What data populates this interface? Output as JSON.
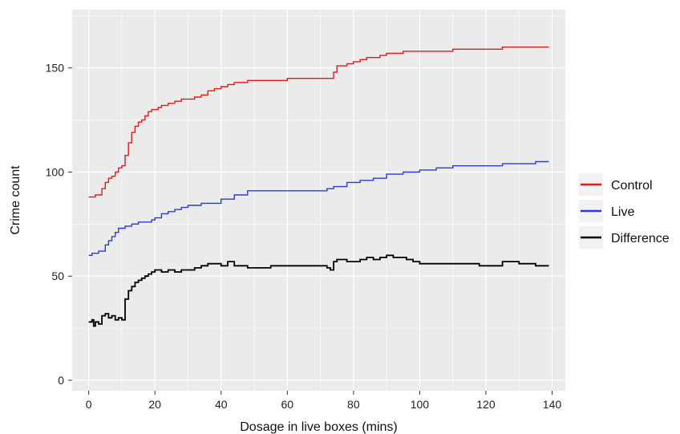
{
  "chart_data": {
    "type": "line",
    "step": true,
    "title": "",
    "xlabel": "Dosage in live boxes (mins)",
    "ylabel": "Crime count",
    "xlim": [
      -5,
      144
    ],
    "ylim": [
      -5,
      178
    ],
    "xticks": [
      0,
      20,
      40,
      60,
      80,
      100,
      120,
      140
    ],
    "yticks": [
      0,
      50,
      100,
      150
    ],
    "grid": true,
    "panel_background": "#EBEBEB",
    "legend_position": "right",
    "series": [
      {
        "name": "Control",
        "color": "#E41A1C",
        "points": [
          [
            0,
            88
          ],
          [
            1,
            88
          ],
          [
            2,
            89
          ],
          [
            3,
            89
          ],
          [
            4,
            92
          ],
          [
            5,
            95
          ],
          [
            6,
            97
          ],
          [
            7,
            98
          ],
          [
            8,
            100
          ],
          [
            9,
            102
          ],
          [
            10,
            103
          ],
          [
            11,
            108
          ],
          [
            12,
            114
          ],
          [
            13,
            119
          ],
          [
            14,
            122
          ],
          [
            15,
            124
          ],
          [
            16,
            125
          ],
          [
            17,
            127
          ],
          [
            18,
            129
          ],
          [
            19,
            130
          ],
          [
            20,
            130
          ],
          [
            21,
            131
          ],
          [
            22,
            132
          ],
          [
            24,
            133
          ],
          [
            26,
            134
          ],
          [
            28,
            135
          ],
          [
            30,
            135
          ],
          [
            32,
            136
          ],
          [
            34,
            137
          ],
          [
            36,
            139
          ],
          [
            38,
            140
          ],
          [
            40,
            141
          ],
          [
            42,
            142
          ],
          [
            44,
            143
          ],
          [
            46,
            143
          ],
          [
            48,
            144
          ],
          [
            50,
            144
          ],
          [
            55,
            144
          ],
          [
            60,
            145
          ],
          [
            65,
            145
          ],
          [
            70,
            145
          ],
          [
            73,
            145
          ],
          [
            74,
            148
          ],
          [
            75,
            151
          ],
          [
            78,
            152
          ],
          [
            80,
            153
          ],
          [
            82,
            154
          ],
          [
            84,
            155
          ],
          [
            86,
            155
          ],
          [
            88,
            156
          ],
          [
            90,
            157
          ],
          [
            95,
            158
          ],
          [
            100,
            158
          ],
          [
            110,
            159
          ],
          [
            120,
            159
          ],
          [
            125,
            160
          ],
          [
            139,
            160
          ]
        ]
      },
      {
        "name": "Live",
        "color": "#2C3BD6",
        "points": [
          [
            0,
            60
          ],
          [
            1,
            61
          ],
          [
            2,
            61
          ],
          [
            3,
            62
          ],
          [
            4,
            62
          ],
          [
            5,
            65
          ],
          [
            6,
            67
          ],
          [
            7,
            69
          ],
          [
            8,
            71
          ],
          [
            9,
            73
          ],
          [
            10,
            73
          ],
          [
            11,
            74
          ],
          [
            12,
            74
          ],
          [
            13,
            75
          ],
          [
            15,
            76
          ],
          [
            17,
            76
          ],
          [
            19,
            77
          ],
          [
            20,
            78
          ],
          [
            22,
            80
          ],
          [
            24,
            81
          ],
          [
            26,
            82
          ],
          [
            28,
            83
          ],
          [
            30,
            84
          ],
          [
            34,
            85
          ],
          [
            38,
            85
          ],
          [
            40,
            87
          ],
          [
            44,
            89
          ],
          [
            48,
            91
          ],
          [
            55,
            91
          ],
          [
            60,
            91
          ],
          [
            65,
            91
          ],
          [
            70,
            91
          ],
          [
            72,
            92
          ],
          [
            74,
            93
          ],
          [
            78,
            95
          ],
          [
            82,
            96
          ],
          [
            86,
            97
          ],
          [
            90,
            99
          ],
          [
            95,
            100
          ],
          [
            100,
            101
          ],
          [
            105,
            102
          ],
          [
            110,
            103
          ],
          [
            120,
            103
          ],
          [
            125,
            104
          ],
          [
            130,
            104
          ],
          [
            135,
            105
          ],
          [
            139,
            105
          ]
        ]
      },
      {
        "name": "Difference",
        "color": "#000000",
        "points": [
          [
            0,
            28
          ],
          [
            1,
            29
          ],
          [
            1.5,
            26
          ],
          [
            2,
            28
          ],
          [
            3,
            27
          ],
          [
            4,
            31
          ],
          [
            5,
            32
          ],
          [
            6,
            30
          ],
          [
            7,
            31
          ],
          [
            8,
            29
          ],
          [
            9,
            30
          ],
          [
            10,
            29
          ],
          [
            11,
            39
          ],
          [
            12,
            43
          ],
          [
            13,
            45
          ],
          [
            14,
            47
          ],
          [
            15,
            48
          ],
          [
            16,
            49
          ],
          [
            17,
            50
          ],
          [
            18,
            51
          ],
          [
            19,
            52
          ],
          [
            20,
            53
          ],
          [
            22,
            52
          ],
          [
            24,
            53
          ],
          [
            26,
            52
          ],
          [
            28,
            53
          ],
          [
            30,
            53
          ],
          [
            32,
            54
          ],
          [
            34,
            55
          ],
          [
            36,
            56
          ],
          [
            38,
            56
          ],
          [
            40,
            55
          ],
          [
            42,
            57
          ],
          [
            44,
            55
          ],
          [
            46,
            55
          ],
          [
            48,
            54
          ],
          [
            50,
            54
          ],
          [
            55,
            55
          ],
          [
            60,
            55
          ],
          [
            65,
            55
          ],
          [
            70,
            55
          ],
          [
            72,
            54
          ],
          [
            73,
            53
          ],
          [
            74,
            57
          ],
          [
            75,
            58
          ],
          [
            78,
            57
          ],
          [
            80,
            57
          ],
          [
            82,
            58
          ],
          [
            84,
            59
          ],
          [
            86,
            58
          ],
          [
            88,
            59
          ],
          [
            90,
            60
          ],
          [
            92,
            59
          ],
          [
            94,
            59
          ],
          [
            96,
            58
          ],
          [
            98,
            57
          ],
          [
            100,
            56
          ],
          [
            110,
            56
          ],
          [
            115,
            56
          ],
          [
            118,
            55
          ],
          [
            120,
            55
          ],
          [
            125,
            57
          ],
          [
            130,
            56
          ],
          [
            135,
            55
          ],
          [
            139,
            55
          ]
        ]
      }
    ]
  }
}
